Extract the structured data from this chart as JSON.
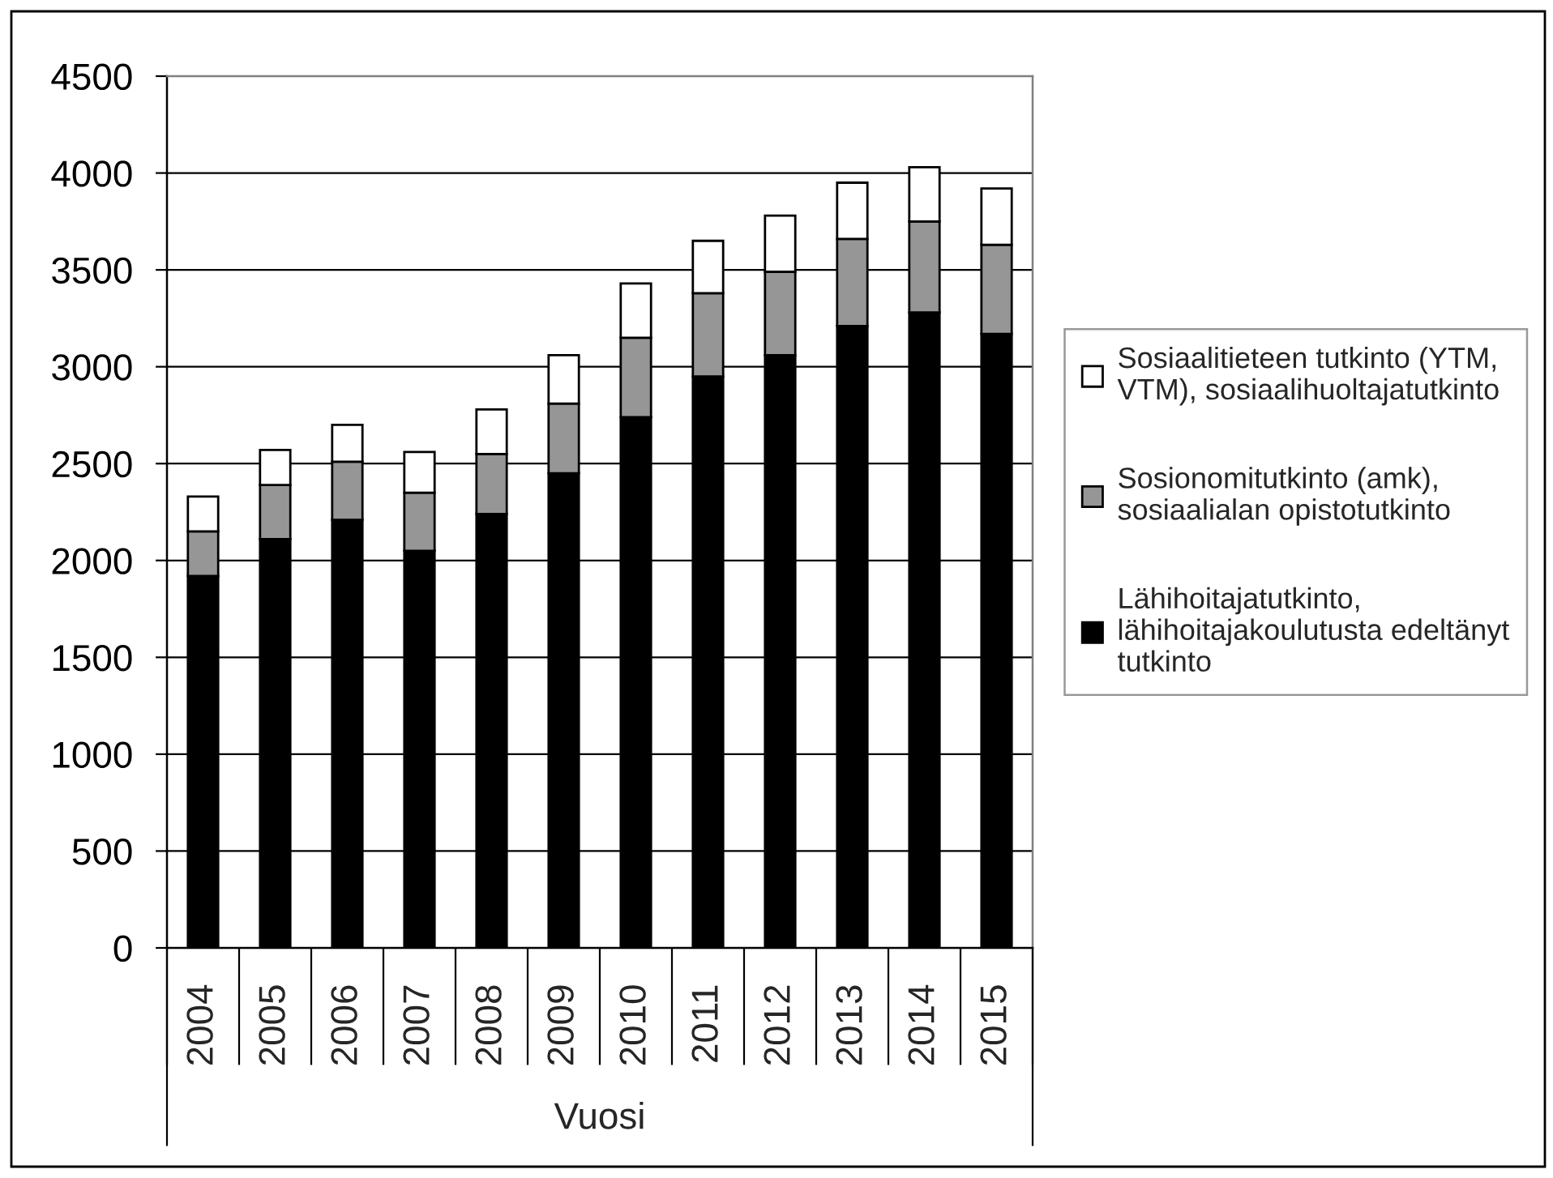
{
  "chart_data": {
    "type": "bar",
    "stacked": true,
    "xlabel": "Vuosi",
    "categories": [
      "2004",
      "2005",
      "2006",
      "2007",
      "2008",
      "2009",
      "2010",
      "2011",
      "2012",
      "2013",
      "2014",
      "2015"
    ],
    "series": [
      {
        "name": "Lähihoitajatutkinto,\nlähihoitajakoulutusta edeltänyt\ntutkinto",
        "color": "#000000",
        "values": [
          1920,
          2110,
          2210,
          2050,
          2240,
          2450,
          2740,
          2950,
          3060,
          3210,
          3280,
          3170
        ]
      },
      {
        "name": "Sosionomitutkinto (amk),\nsosiaalialan opistotutkinto",
        "color": "#969696",
        "values": [
          230,
          280,
          300,
          300,
          310,
          360,
          410,
          430,
          430,
          450,
          470,
          460
        ]
      },
      {
        "name": "Sosiaalitieteen tutkinto (YTM,\nVTM), sosiaalihuoltajatutkinto",
        "color": "#ffffff",
        "values": [
          180,
          180,
          190,
          210,
          230,
          250,
          280,
          270,
          290,
          290,
          280,
          290
        ]
      }
    ],
    "ylim": [
      0,
      4500
    ],
    "yticks": [
      0,
      500,
      1000,
      1500,
      2000,
      2500,
      3000,
      3500,
      4000,
      4500
    ],
    "grid": "y",
    "legend": "right"
  }
}
